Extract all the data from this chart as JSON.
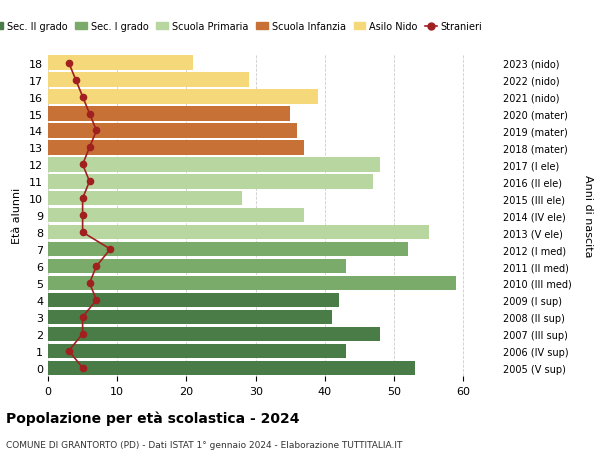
{
  "ages": [
    18,
    17,
    16,
    15,
    14,
    13,
    12,
    11,
    10,
    9,
    8,
    7,
    6,
    5,
    4,
    3,
    2,
    1,
    0
  ],
  "bar_values": [
    53,
    43,
    48,
    41,
    42,
    59,
    43,
    52,
    55,
    37,
    28,
    47,
    48,
    37,
    36,
    35,
    39,
    29,
    21
  ],
  "stranieri": [
    5,
    3,
    5,
    5,
    7,
    6,
    7,
    9,
    5,
    5,
    5,
    6,
    5,
    6,
    7,
    6,
    5,
    4,
    3
  ],
  "right_labels": [
    "2005 (V sup)",
    "2006 (IV sup)",
    "2007 (III sup)",
    "2008 (II sup)",
    "2009 (I sup)",
    "2010 (III med)",
    "2011 (II med)",
    "2012 (I med)",
    "2013 (V ele)",
    "2014 (IV ele)",
    "2015 (III ele)",
    "2016 (II ele)",
    "2017 (I ele)",
    "2018 (mater)",
    "2019 (mater)",
    "2020 (mater)",
    "2021 (nido)",
    "2022 (nido)",
    "2023 (nido)"
  ],
  "bar_colors": [
    "#4a7c47",
    "#4a7c47",
    "#4a7c47",
    "#4a7c47",
    "#4a7c47",
    "#7aab6a",
    "#7aab6a",
    "#7aab6a",
    "#b8d6a0",
    "#b8d6a0",
    "#b8d6a0",
    "#b8d6a0",
    "#b8d6a0",
    "#c87137",
    "#c87137",
    "#c87137",
    "#f5d87a",
    "#f5d87a",
    "#f5d87a"
  ],
  "legend_labels": [
    "Sec. II grado",
    "Sec. I grado",
    "Scuola Primaria",
    "Scuola Infanzia",
    "Asilo Nido",
    "Stranieri"
  ],
  "legend_colors": [
    "#4a7c47",
    "#7aab6a",
    "#b8d6a0",
    "#c87137",
    "#f5d87a",
    "#a02020"
  ],
  "stranieri_color": "#a02020",
  "ylabel_left": "Età alunni",
  "ylabel_right": "Anni di nascita",
  "title": "Popolazione per età scolastica - 2024",
  "subtitle": "COMUNE DI GRANTORTO (PD) - Dati ISTAT 1° gennaio 2024 - Elaborazione TUTTITALIA.IT",
  "xlim": [
    0,
    65
  ],
  "xticks": [
    0,
    10,
    20,
    30,
    40,
    50,
    60
  ],
  "background_color": "#ffffff",
  "grid_color": "#cccccc"
}
